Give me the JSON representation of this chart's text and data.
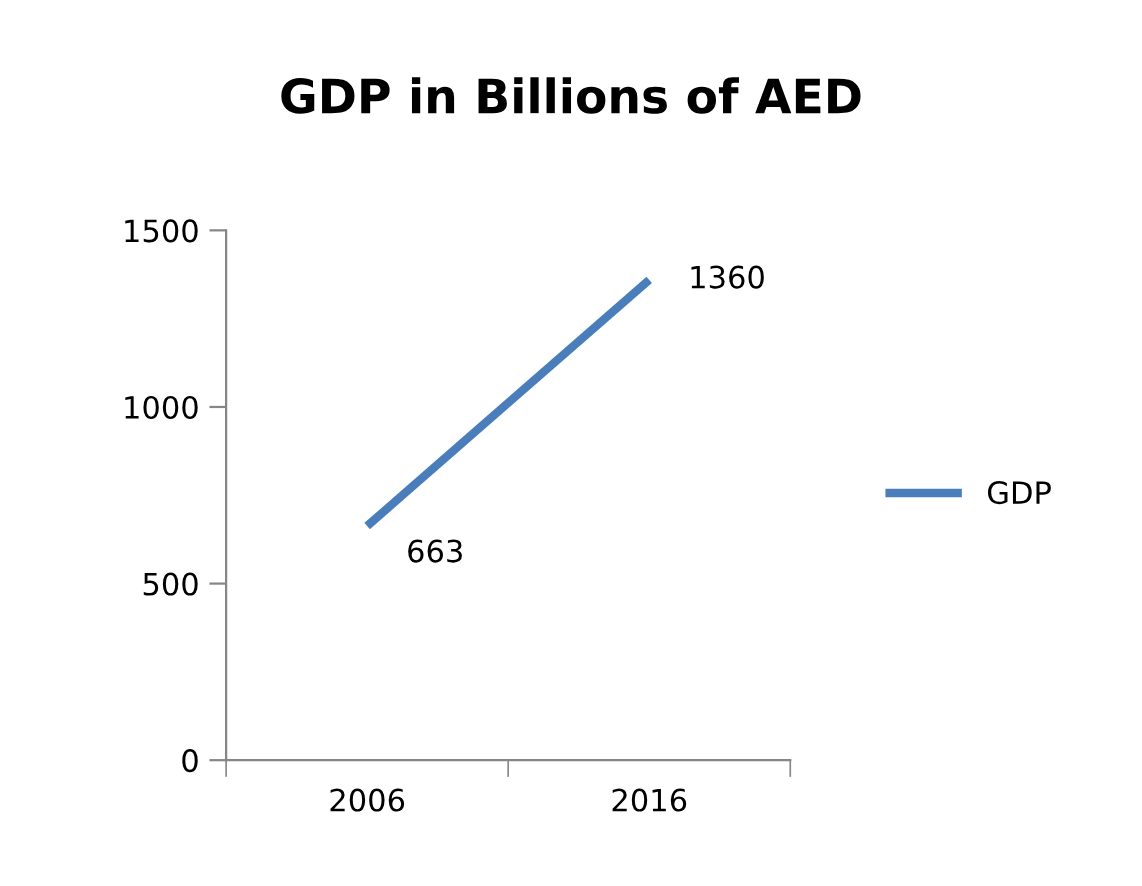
{
  "chart_data": {
    "type": "line",
    "title": "GDP in Billions of AED",
    "categories": [
      "2006",
      "2016"
    ],
    "series": [
      {
        "name": "GDP",
        "color": "#4a7ebb",
        "values": [
          663,
          1360
        ]
      }
    ],
    "ylim": [
      0,
      1500
    ],
    "yticks": [
      0,
      500,
      1000,
      1500
    ],
    "grid": false,
    "legend": "right",
    "data_labels": true,
    "marker": "none",
    "line_style": "solid"
  }
}
